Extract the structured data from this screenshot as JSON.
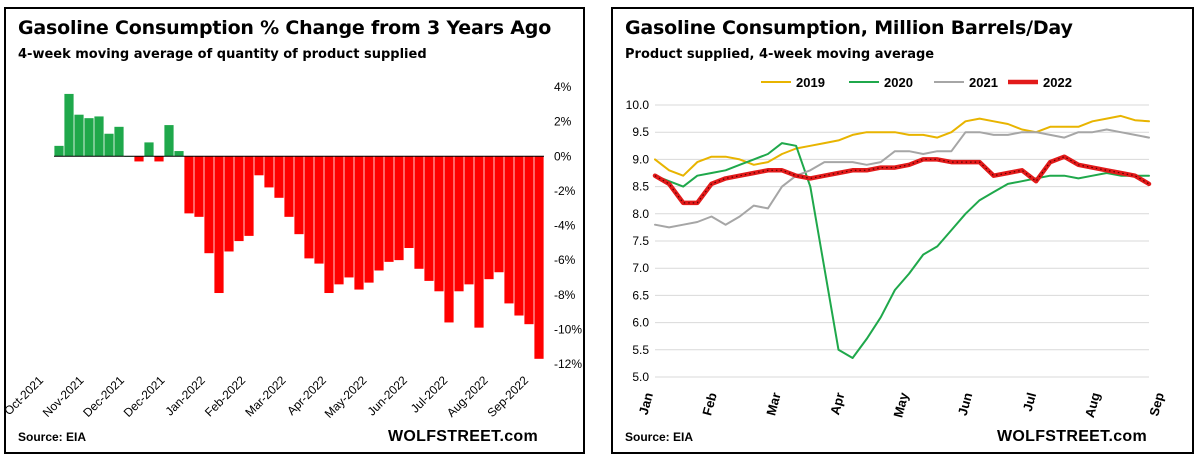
{
  "chart_data": [
    {
      "type": "bar",
      "title": "Gasoline Consumption % Change from 3 Years Ago",
      "subtitle": "4-week moving average of quantity of product supplied",
      "source": "Source: EIA",
      "brand": "WOLFSTREET.com",
      "ylim": [
        -12,
        4
      ],
      "ytick_labels": [
        "4%",
        "2%",
        "0%",
        "-2%",
        "-4%",
        "-6%",
        "-8%",
        "-10%",
        "-12%"
      ],
      "ytick_values": [
        4,
        2,
        0,
        -2,
        -4,
        -6,
        -8,
        -10,
        -12
      ],
      "x_labels": [
        "Oct-2021",
        "Nov-2021",
        "Dec-2021",
        "Dec-2021",
        "Jan-2022",
        "Feb-2022",
        "Mar-2022",
        "Apr-2022",
        "May-2022",
        "Jun-2022",
        "Jul-2022",
        "Aug-2022",
        "Sep-2022"
      ],
      "positive_color": "#1fa84b",
      "negative_color": "#ff0000",
      "values": [
        0.6,
        3.6,
        2.4,
        2.2,
        2.3,
        1.3,
        1.7,
        0,
        -0.3,
        0.8,
        -0.3,
        1.8,
        0.3,
        -3.3,
        -3.5,
        -5.6,
        -7.9,
        -5.5,
        -4.9,
        -4.6,
        -1.1,
        -1.8,
        -2.4,
        -3.5,
        -4.5,
        -5.9,
        -6.2,
        -7.9,
        -7.4,
        -7.0,
        -7.7,
        -7.3,
        -6.6,
        -6.1,
        -6.0,
        -5.3,
        -6.5,
        -7.2,
        -7.8,
        -9.6,
        -7.8,
        -7.4,
        -9.9,
        -7.1,
        -6.7,
        -8.5,
        -9.2,
        -9.7,
        -11.7
      ]
    },
    {
      "type": "line",
      "title": "Gasoline Consumption, Million Barrels/Day",
      "subtitle": "Product supplied, 4-week moving average",
      "source": "Source: EIA",
      "brand": "WOLFSTREET.com",
      "ylim": [
        5.0,
        10.0
      ],
      "ytick_labels": [
        "10.0",
        "9.5",
        "9.0",
        "8.5",
        "8.0",
        "7.5",
        "7.0",
        "6.5",
        "6.0",
        "5.5",
        "5.0"
      ],
      "ytick_values": [
        10.0,
        9.5,
        9.0,
        8.5,
        8.0,
        7.5,
        7.0,
        6.5,
        6.0,
        5.5,
        5.0
      ],
      "x_labels": [
        "Jan",
        "Feb",
        "Mar",
        "Apr",
        "May",
        "Jun",
        "Jul",
        "Aug",
        "Sep"
      ],
      "x_range": [
        0,
        35
      ],
      "series": [
        {
          "name": "2019",
          "color": "#e8b400",
          "width": 2,
          "x": [
            0,
            1,
            2,
            3,
            4,
            5,
            6,
            7,
            8,
            9,
            10,
            11,
            12,
            13,
            14,
            15,
            16,
            17,
            18,
            19,
            20,
            21,
            22,
            23,
            24,
            25,
            26,
            27,
            28,
            29,
            30,
            31,
            32,
            33,
            34,
            35
          ],
          "values": [
            9.0,
            8.8,
            8.7,
            8.95,
            9.05,
            9.05,
            9.0,
            8.9,
            8.95,
            9.1,
            9.2,
            9.25,
            9.3,
            9.35,
            9.45,
            9.5,
            9.5,
            9.5,
            9.45,
            9.45,
            9.4,
            9.5,
            9.7,
            9.75,
            9.7,
            9.65,
            9.55,
            9.5,
            9.6,
            9.6,
            9.6,
            9.7,
            9.75,
            9.8,
            9.72,
            9.7
          ]
        },
        {
          "name": "2020",
          "color": "#1fa84b",
          "width": 2,
          "x": [
            0,
            1,
            2,
            3,
            4,
            5,
            6,
            7,
            8,
            9,
            10,
            11,
            12,
            13,
            14,
            15,
            16,
            17,
            18,
            19,
            20,
            21,
            22,
            23,
            24,
            25,
            26,
            27,
            28,
            29,
            30,
            31,
            32,
            33,
            34,
            35
          ],
          "values": [
            8.7,
            8.6,
            8.5,
            8.7,
            8.75,
            8.8,
            8.9,
            9.0,
            9.1,
            9.3,
            9.25,
            8.5,
            7.0,
            5.5,
            5.35,
            5.7,
            6.1,
            6.6,
            6.9,
            7.25,
            7.4,
            7.7,
            8.0,
            8.25,
            8.4,
            8.55,
            8.6,
            8.65,
            8.7,
            8.7,
            8.65,
            8.7,
            8.75,
            8.7,
            8.7,
            8.7
          ]
        },
        {
          "name": "2021",
          "color": "#a6a6a6",
          "width": 2,
          "x": [
            0,
            1,
            2,
            3,
            4,
            5,
            6,
            7,
            8,
            9,
            10,
            11,
            12,
            13,
            14,
            15,
            16,
            17,
            18,
            19,
            20,
            21,
            22,
            23,
            24,
            25,
            26,
            27,
            28,
            29,
            30,
            31,
            32,
            33,
            34,
            35
          ],
          "values": [
            7.8,
            7.75,
            7.8,
            7.85,
            7.95,
            7.8,
            7.95,
            8.15,
            8.1,
            8.5,
            8.7,
            8.8,
            8.95,
            8.95,
            8.95,
            8.9,
            8.95,
            9.15,
            9.15,
            9.1,
            9.15,
            9.15,
            9.5,
            9.5,
            9.45,
            9.45,
            9.5,
            9.5,
            9.45,
            9.4,
            9.5,
            9.5,
            9.55,
            9.5,
            9.45,
            9.4
          ]
        },
        {
          "name": "2022",
          "color": "#e21a1a",
          "width": 4.5,
          "x": [
            0,
            1,
            2,
            3,
            4,
            5,
            6,
            7,
            8,
            9,
            10,
            11,
            12,
            13,
            14,
            15,
            16,
            17,
            18,
            19,
            20,
            21,
            22,
            23,
            24,
            25,
            26,
            27,
            28,
            29,
            30,
            31,
            32,
            33,
            34,
            35
          ],
          "values": [
            8.7,
            8.55,
            8.2,
            8.2,
            8.55,
            8.65,
            8.7,
            8.75,
            8.8,
            8.8,
            8.7,
            8.65,
            8.7,
            8.75,
            8.8,
            8.8,
            8.85,
            8.85,
            8.9,
            9.0,
            9.0,
            8.95,
            8.95,
            8.95,
            8.7,
            8.75,
            8.8,
            8.6,
            8.95,
            9.05,
            8.9,
            8.85,
            8.8,
            8.75,
            8.7,
            8.55
          ]
        }
      ],
      "legend_position": "top"
    }
  ]
}
